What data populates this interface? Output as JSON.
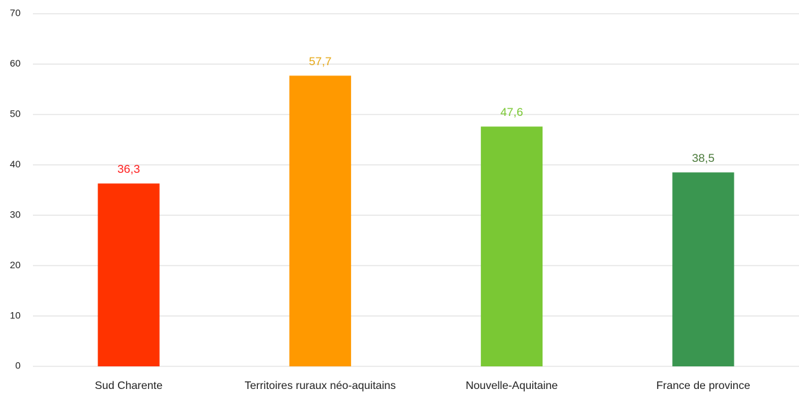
{
  "chart_data": {
    "type": "bar",
    "categories": [
      "Sud Charente",
      "Territoires ruraux néo-aquitains",
      "Nouvelle-Aquitaine",
      "France de province"
    ],
    "values": [
      36.3,
      57.7,
      47.6,
      38.5
    ],
    "value_labels": [
      "36,3",
      "57,7",
      "47,6",
      "38,5"
    ],
    "colors": [
      "#ff3300",
      "#ff9900",
      "#7ac834",
      "#3a9650"
    ],
    "label_colors": [
      "#ff2020",
      "#e6a817",
      "#7ac834",
      "#4a7a3a"
    ],
    "ylim": [
      0,
      70
    ],
    "yticks": [
      0,
      10,
      20,
      30,
      40,
      50,
      60,
      70
    ],
    "grid": true
  }
}
